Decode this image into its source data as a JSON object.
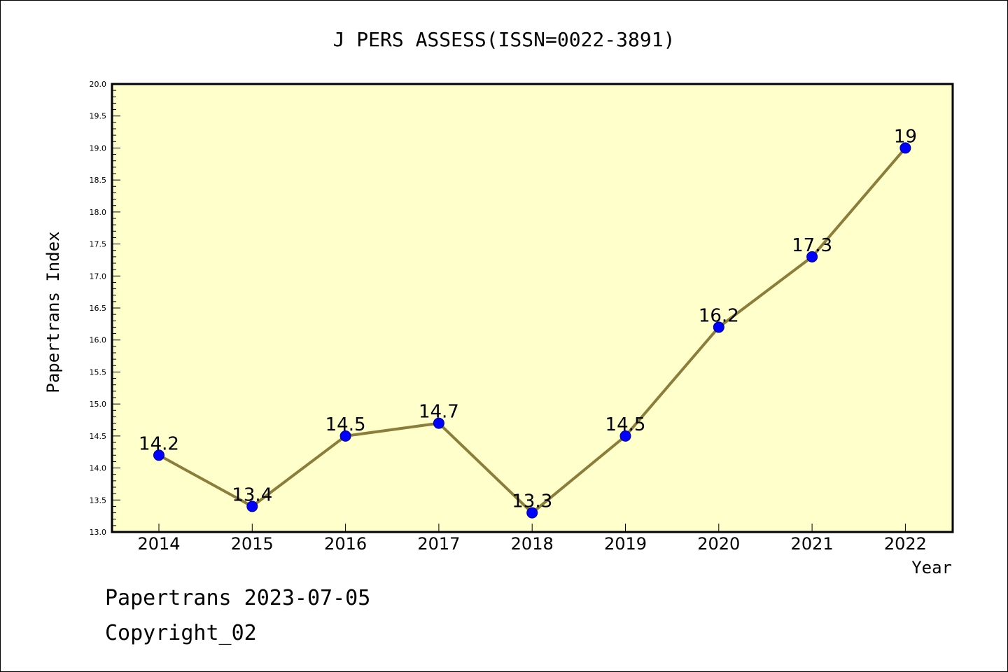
{
  "chart_data": {
    "type": "line",
    "title": "J PERS ASSESS(ISSN=0022-3891)",
    "xlabel": "Year",
    "ylabel": "Papertrans Index",
    "categories": [
      "2014",
      "2015",
      "2016",
      "2017",
      "2018",
      "2019",
      "2020",
      "2021",
      "2022"
    ],
    "values": [
      14.2,
      13.4,
      14.5,
      14.7,
      13.3,
      14.5,
      16.2,
      17.3,
      19
    ],
    "data_labels": [
      "14.2",
      "13.4",
      "14.5",
      "14.7",
      "13.3",
      "14.5",
      "16.2",
      "17.3",
      "19"
    ],
    "ylim": [
      13.0,
      20.0
    ],
    "y_ticks": [
      "13.0",
      "13.5",
      "14.0",
      "14.5",
      "15.0",
      "15.5",
      "16.0",
      "16.5",
      "17.0",
      "17.5",
      "18.0",
      "18.5",
      "19.0",
      "19.5",
      "20.0"
    ],
    "grid": false,
    "legend": "none",
    "colors": {
      "plot_background": "#ffffcc",
      "line": "#8b7d3a",
      "marker": "#0000ff"
    }
  },
  "footer": {
    "line1": "Papertrans 2023-07-05",
    "line2": "Copyright_02"
  }
}
